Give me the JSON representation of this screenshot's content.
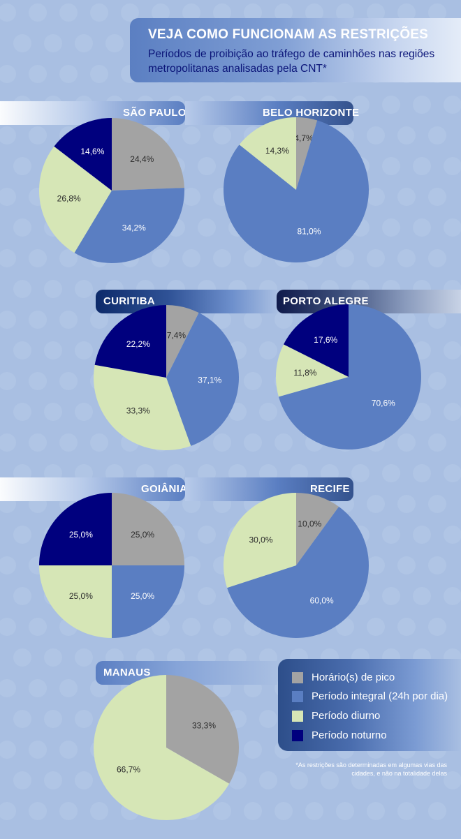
{
  "header": {
    "title": "VEJA COMO FUNCIONAM AS RESTRIÇÕES",
    "subtitle": "Períodos de proibição ao tráfego de caminhões nas regiões metropolitanas analisadas pela CNT*"
  },
  "colors": {
    "pico": "#a3a3a3",
    "integral": "#5a7ec2",
    "diurno": "#d6e6b6",
    "noturno": "#00007e"
  },
  "legend": [
    {
      "key": "pico",
      "label": "Horário(s) de pico"
    },
    {
      "key": "integral",
      "label": "Período integral (24h por dia)"
    },
    {
      "key": "diurno",
      "label": "Período diurno"
    },
    {
      "key": "noturno",
      "label": "Período noturno"
    }
  ],
  "chart_data": [
    {
      "type": "pie",
      "title": "SÃO PAULO",
      "slices": [
        {
          "key": "pico",
          "value": 24.4,
          "label": "24,4%"
        },
        {
          "key": "integral",
          "value": 34.2,
          "label": "34,2%"
        },
        {
          "key": "diurno",
          "value": 26.8,
          "label": "26,8%"
        },
        {
          "key": "noturno",
          "value": 14.6,
          "label": "14,6%"
        }
      ]
    },
    {
      "type": "pie",
      "title": "BELO HORIZONTE",
      "slices": [
        {
          "key": "pico",
          "value": 4.7,
          "label": "4,7%"
        },
        {
          "key": "integral",
          "value": 81.0,
          "label": "81,0%"
        },
        {
          "key": "diurno",
          "value": 14.3,
          "label": "14,3%"
        }
      ]
    },
    {
      "type": "pie",
      "title": "CURITIBA",
      "slices": [
        {
          "key": "pico",
          "value": 7.4,
          "label": "7,4%"
        },
        {
          "key": "integral",
          "value": 37.1,
          "label": "37,1%"
        },
        {
          "key": "diurno",
          "value": 33.3,
          "label": "33,3%"
        },
        {
          "key": "noturno",
          "value": 22.2,
          "label": "22,2%"
        }
      ]
    },
    {
      "type": "pie",
      "title": "PORTO ALEGRE",
      "slices": [
        {
          "key": "integral",
          "value": 70.6,
          "label": "70,6%"
        },
        {
          "key": "diurno",
          "value": 11.8,
          "label": "11,8%"
        },
        {
          "key": "noturno",
          "value": 17.6,
          "label": "17,6%"
        }
      ]
    },
    {
      "type": "pie",
      "title": "GOIÂNIA",
      "slices": [
        {
          "key": "pico",
          "value": 25.0,
          "label": "25,0%"
        },
        {
          "key": "integral",
          "value": 25.0,
          "label": "25,0%"
        },
        {
          "key": "diurno",
          "value": 25.0,
          "label": "25,0%"
        },
        {
          "key": "noturno",
          "value": 25.0,
          "label": "25,0%"
        }
      ]
    },
    {
      "type": "pie",
      "title": "RECIFE",
      "slices": [
        {
          "key": "pico",
          "value": 10.0,
          "label": "10,0%"
        },
        {
          "key": "integral",
          "value": 60.0,
          "label": "60,0%"
        },
        {
          "key": "diurno",
          "value": 30.0,
          "label": "30,0%"
        }
      ]
    },
    {
      "type": "pie",
      "title": "MANAUS",
      "slices": [
        {
          "key": "pico",
          "value": 33.3,
          "label": "33,3%"
        },
        {
          "key": "diurno",
          "value": 66.7,
          "label": "66,7%"
        }
      ]
    }
  ],
  "footnote": "*As restrições são determinadas em algumas vias das cidades, e não na totalidade delas"
}
